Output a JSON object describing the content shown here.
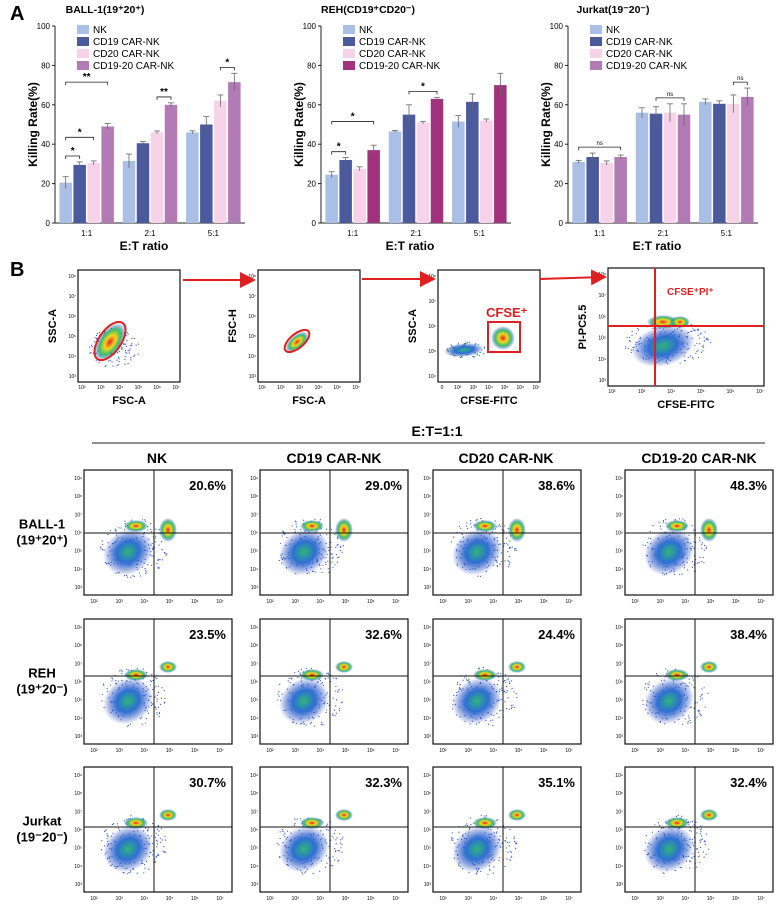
{
  "panel_a_letter": "A",
  "panel_b_letter": "B",
  "chart_data": [
    {
      "type": "bar",
      "title": "BALL-1(19⁺20⁺)",
      "xlabel": "E:T ratio",
      "ylabel": "Killing Rate(%)",
      "ylim": [
        0,
        100
      ],
      "yticks": [
        "0",
        "20",
        "40",
        "60",
        "80",
        "100"
      ],
      "categories": [
        "1:1",
        "2:1",
        "5:1"
      ],
      "series": [
        {
          "name": "NK",
          "color": "#a9bfe6",
          "values": [
            20.5,
            31.5,
            46
          ],
          "errors": [
            3,
            3.5,
            0.8
          ]
        },
        {
          "name": "CD19 CAR-NK",
          "color": "#4a5a9c",
          "values": [
            29.5,
            40.5,
            50
          ],
          "errors": [
            1.5,
            0.8,
            4
          ]
        },
        {
          "name": "CD20 CAR-NK",
          "color": "#f6d3e8",
          "values": [
            30.5,
            46,
            62
          ],
          "errors": [
            1,
            0.7,
            3
          ]
        },
        {
          "name": "CD19-20 CAR-NK",
          "color": "#b27bb5",
          "values": [
            49,
            60,
            71.5
          ],
          "errors": [
            1.5,
            1,
            4.5
          ]
        }
      ],
      "comparisons": [
        {
          "label": "*",
          "group": 0,
          "from": 0,
          "to": 1
        },
        {
          "label": "*",
          "group": 0,
          "from": 0,
          "to": 2
        },
        {
          "label": "**",
          "group": 0,
          "from": 0,
          "to": 3
        },
        {
          "label": "**",
          "group": 1,
          "from": 2,
          "to": 3
        },
        {
          "label": "*",
          "group": 2,
          "from": 2,
          "to": 3
        }
      ]
    },
    {
      "type": "bar",
      "title": "REH(CD19⁺CD20⁻)",
      "xlabel": "E:T ratio",
      "ylabel": "Killing Rate(%)",
      "ylim": [
        0,
        100
      ],
      "yticks": [
        "0",
        "20",
        "40",
        "60",
        "80",
        "100"
      ],
      "categories": [
        "1:1",
        "2:1",
        "5:1"
      ],
      "series": [
        {
          "name": "NK",
          "color": "#a9bfe6",
          "values": [
            24.5,
            46.5,
            51.5
          ],
          "errors": [
            1.5,
            0.5,
            3
          ]
        },
        {
          "name": "CD19 CAR-NK",
          "color": "#4a5a9c",
          "values": [
            32,
            55,
            61.5
          ],
          "errors": [
            1.2,
            5,
            4
          ]
        },
        {
          "name": "CD20 CAR-NK",
          "color": "#f6d3e8",
          "values": [
            27.5,
            51,
            52
          ],
          "errors": [
            1,
            0.6,
            0.8
          ]
        },
        {
          "name": "CD19-20 CAR-NK",
          "color": "#a3327e",
          "values": [
            37,
            63,
            70
          ],
          "errors": [
            2.5,
            0.8,
            6
          ]
        }
      ],
      "comparisons": [
        {
          "label": "*",
          "group": 0,
          "from": 0,
          "to": 1
        },
        {
          "label": "*",
          "group": 0,
          "from": 0,
          "to": 3
        },
        {
          "label": "*",
          "group": 1,
          "from": 1,
          "to": 3
        }
      ]
    },
    {
      "type": "bar",
      "title": "Jurkat(19⁻20⁻)",
      "xlabel": "E:T ratio",
      "ylabel": "Killing Rate(%)",
      "ylim": [
        0,
        100
      ],
      "yticks": [
        "0",
        "20",
        "40",
        "60",
        "80",
        "100"
      ],
      "categories": [
        "1:1",
        "2:1",
        "5:1"
      ],
      "series": [
        {
          "name": "NK",
          "color": "#a9bfe6",
          "values": [
            31,
            56,
            61.5
          ],
          "errors": [
            0.8,
            2.5,
            1.5
          ]
        },
        {
          "name": "CD19 CAR-NK",
          "color": "#4a5a9c",
          "values": [
            33.5,
            55.5,
            60.5
          ],
          "errors": [
            2,
            3.5,
            1.5
          ]
        },
        {
          "name": "CD20 CAR-NK",
          "color": "#f6d3e8",
          "values": [
            30.5,
            56,
            60.5
          ],
          "errors": [
            1,
            4.5,
            4.5
          ]
        },
        {
          "name": "CD19-20 CAR-NK",
          "color": "#b27bb5",
          "values": [
            33.5,
            55,
            64
          ],
          "errors": [
            1,
            5.5,
            4.5
          ]
        }
      ],
      "comparisons": [
        {
          "label": "ns",
          "group": 0,
          "from": 0,
          "to": 3
        },
        {
          "label": "ns",
          "group": 1,
          "from": 1,
          "to": 3
        },
        {
          "label": "ns",
          "group": 2,
          "from": 2,
          "to": 3
        }
      ]
    }
  ],
  "gating": {
    "plots": [
      {
        "xlabel": "FSC-A",
        "ylabel": "SSC-A",
        "gate": "",
        "xticks": [
          "10²",
          "10³",
          "10⁴",
          "10⁵",
          "10⁶",
          "10⁷"
        ],
        "yticks": [
          "10³",
          "10⁴",
          "10⁵",
          "10⁶",
          "10⁷",
          "10⁸"
        ]
      },
      {
        "xlabel": "FSC-A",
        "ylabel": "FSC-H",
        "gate": "",
        "xticks": [
          "10²",
          "10³",
          "10⁴",
          "10⁵",
          "10⁶",
          "10⁷"
        ],
        "yticks": [
          "10³",
          "10⁴",
          "10⁵",
          "10⁶",
          "10⁷",
          "10⁸"
        ]
      },
      {
        "xlabel": "CFSE-FITC",
        "ylabel": "SSC-A",
        "gate": "CFSE⁺",
        "xticks": [
          "0",
          "10²",
          "10³",
          "10⁴",
          "10⁵",
          "10⁶",
          "10⁷"
        ],
        "yticks": [
          "10⁴",
          "10⁵",
          "10⁶",
          "10⁷",
          "10⁸"
        ]
      },
      {
        "xlabel": "CFSE-FITC",
        "ylabel": "PI-PC5.5",
        "gate": "CFSE⁺PI⁺",
        "xticks": [
          "10²",
          "10³",
          "10⁴",
          "10⁵",
          "10⁶",
          "10⁷"
        ],
        "yticks": [
          "10³",
          "10⁴",
          "10⁵",
          "10⁶",
          "10⁷",
          "10⁸"
        ]
      }
    ]
  },
  "grid": {
    "heading": "E:T=1:1",
    "columns": [
      "NK",
      "CD19 CAR-NK",
      "CD20 CAR-NK",
      "CD19-20 CAR-NK"
    ],
    "rows": [
      {
        "line1": "BALL-1",
        "line2": "(19⁺20⁺)",
        "values": [
          "20.6%",
          "29.0%",
          "38.6%",
          "48.3%"
        ]
      },
      {
        "line1": "REH",
        "line2": "(19⁺20⁻)",
        "values": [
          "23.5%",
          "32.6%",
          "24.4%",
          "38.4%"
        ]
      },
      {
        "line1": "Jurkat",
        "line2": "(19⁻20⁻)",
        "values": [
          "30.7%",
          "32.3%",
          "35.1%",
          "32.4%"
        ]
      }
    ],
    "xticks": [
      "10²",
      "10³",
      "10⁴",
      "10⁵",
      "10⁶",
      "10⁷"
    ],
    "yticks": [
      "10³",
      "10⁴",
      "10⁵",
      "10⁶",
      "10⁷",
      "10⁸",
      "10⁹"
    ]
  }
}
